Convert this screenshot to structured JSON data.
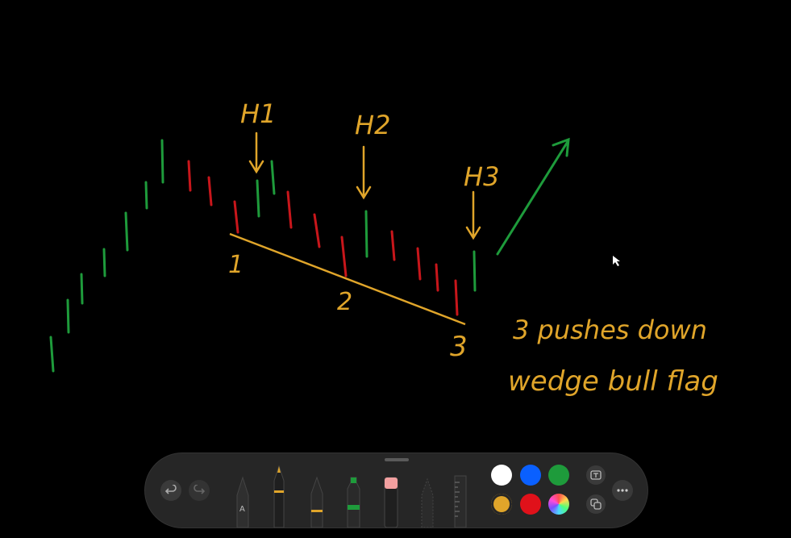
{
  "annotations": {
    "h1": "H1",
    "h2": "H2",
    "h3": "H3",
    "label_1": "1",
    "label_2": "2",
    "label_3": "3",
    "note_line1": "3 pushes down",
    "note_line2": "wedge bull flag"
  },
  "toolbar": {
    "undo_icon": "undo-icon",
    "redo_icon": "redo-icon",
    "pen_label": "A",
    "tools": [
      "pen",
      "marker",
      "pencil",
      "highlighter",
      "eraser",
      "lasso",
      "ruler"
    ],
    "colors": {
      "white": "#ffffff",
      "blue": "#0a60ff",
      "green": "#1e9b3b",
      "gold": "#e0a52a",
      "red": "#e0111a"
    },
    "selected_color": "gold"
  },
  "colors": {
    "ink_green": "#1e9b3b",
    "ink_red": "#c8161b",
    "ink_gold": "#e0a52a",
    "background": "#000000"
  }
}
